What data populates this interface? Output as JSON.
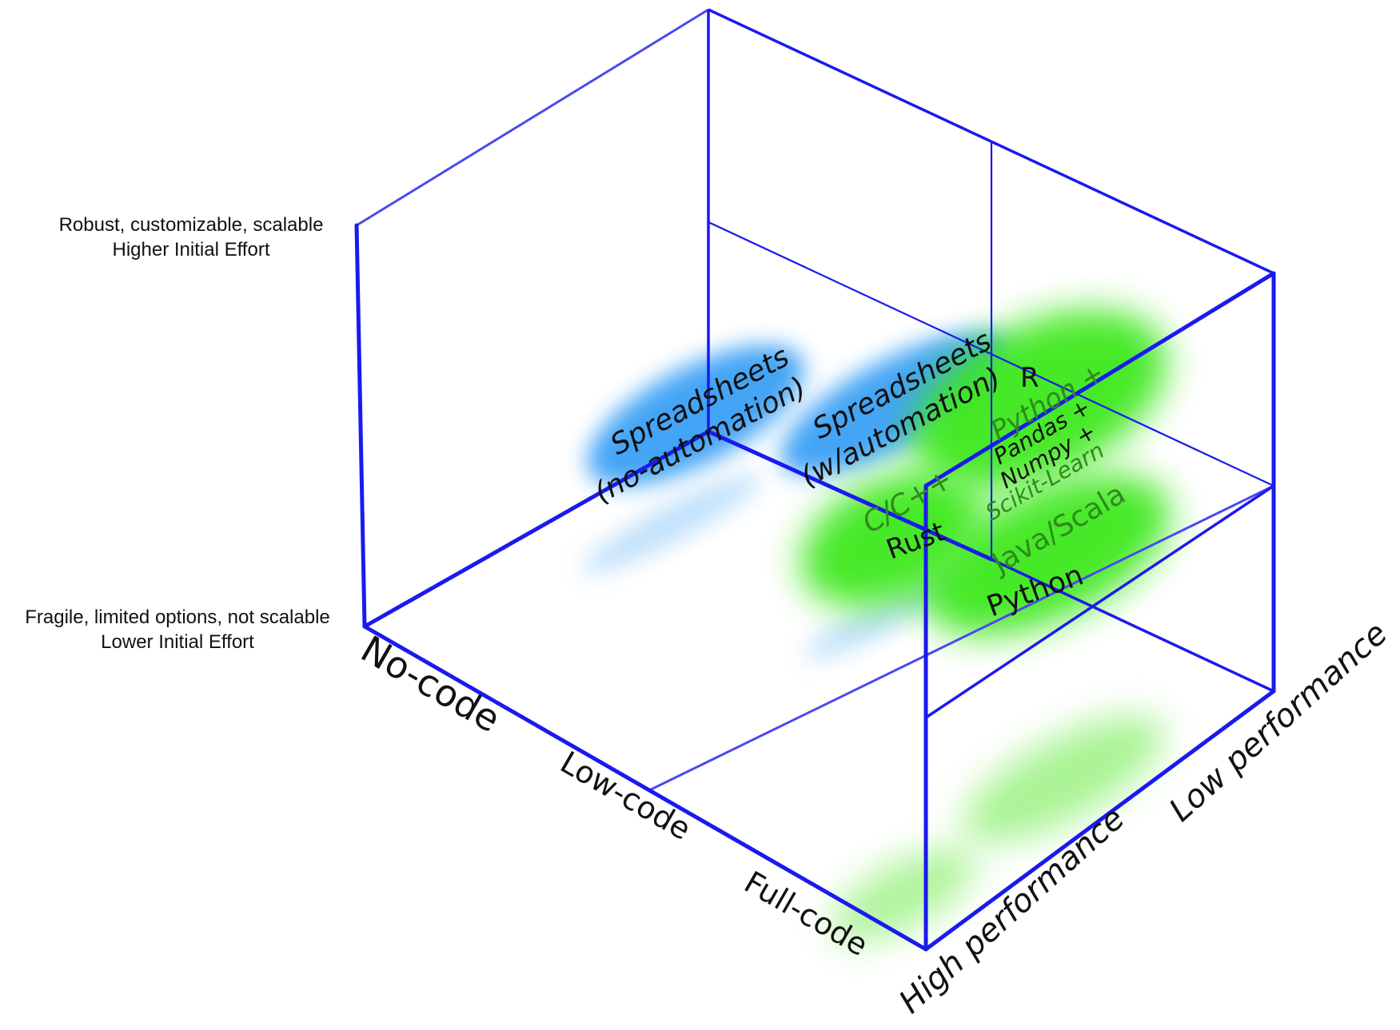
{
  "vertical_axis": {
    "top_label_line1": "Robust, customizable, scalable",
    "top_label_line2": "Higher Initial Effort",
    "bottom_label_line1": "Fragile, limited options, not scalable",
    "bottom_label_line2": "Lower Initial Effort"
  },
  "code_axis": {
    "no_code": "No-code",
    "low_code": "Low-code",
    "full_code": "Full-code"
  },
  "performance_axis": {
    "high": "High performance",
    "low": "Low performance"
  },
  "tools": {
    "spreadsheets_no_auto_line1": "Spreadsheets",
    "spreadsheets_no_auto_line2": "(no-automation)",
    "spreadsheets_auto_line1": "Spreadsheets",
    "spreadsheets_auto_line2": "(w/automation)",
    "r": "R",
    "python_stack_line1": "Python +",
    "python_stack_line2": "Pandas +",
    "python_stack_line3": "Numpy +",
    "python_stack_line4": "Scikit-Learn",
    "c_cpp": "C/C++",
    "rust": "Rust",
    "java_scala": "Java/Scala",
    "python": "Python"
  },
  "colors": {
    "frame": "#1a1aee",
    "spreadsheet_blob": "#3aa0f5",
    "code_blob": "#3ee81a"
  }
}
